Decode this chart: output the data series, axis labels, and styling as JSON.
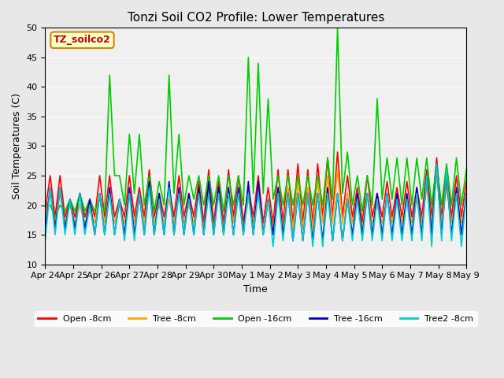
{
  "title": "Tonzi Soil CO2 Profile: Lower Temperatures",
  "xlabel": "Time",
  "ylabel": "Soil Temperatures (C)",
  "ylim": [
    10,
    50
  ],
  "yticks": [
    10,
    15,
    20,
    25,
    30,
    35,
    40,
    45,
    50
  ],
  "background_color": "#e8e8e8",
  "plot_bg_color": "#f0f0f0",
  "label_box_text": "TZ_soilco2",
  "label_box_bg": "#ffffcc",
  "label_box_border": "#cc8800",
  "label_box_text_color": "#cc0000",
  "series": {
    "open_8cm": {
      "color": "#ff0000",
      "label": "Open -8cm",
      "values": [
        19,
        25,
        18,
        25,
        18,
        21,
        18,
        22,
        18,
        21,
        18,
        25,
        18,
        25,
        18,
        21,
        18,
        25,
        18,
        23,
        18,
        26,
        18,
        22,
        18,
        23,
        18,
        25,
        18,
        22,
        18,
        24,
        17,
        26,
        17,
        24,
        17,
        26,
        18,
        25,
        17,
        23,
        18,
        25,
        17,
        23,
        17,
        26,
        17,
        26,
        17,
        27,
        17,
        26,
        17,
        27,
        18,
        28,
        18,
        29,
        18,
        25,
        18,
        23,
        17,
        25,
        18,
        22,
        18,
        24,
        18,
        23,
        18,
        24,
        18,
        23,
        18,
        26,
        18,
        28,
        18,
        26,
        18,
        25,
        18,
        24
      ]
    },
    "tree_8cm": {
      "color": "#ffa500",
      "label": "Tree -8cm",
      "values": [
        18,
        22,
        17,
        22,
        17,
        20,
        17,
        20,
        17,
        19,
        17,
        22,
        17,
        22,
        17,
        20,
        17,
        22,
        17,
        21,
        17,
        23,
        17,
        20,
        17,
        21,
        17,
        22,
        17,
        20,
        17,
        22,
        16,
        23,
        16,
        22,
        16,
        23,
        17,
        22,
        16,
        21,
        17,
        22,
        16,
        21,
        16,
        23,
        16,
        23,
        16,
        24,
        16,
        23,
        16,
        24,
        17,
        25,
        17,
        26,
        17,
        22,
        17,
        21,
        16,
        22,
        17,
        20,
        17,
        21,
        17,
        21,
        17,
        21,
        17,
        21,
        17,
        23,
        17,
        25,
        17,
        23,
        17,
        22,
        17,
        21
      ]
    },
    "open_16cm": {
      "color": "#00cc00",
      "label": "Open -16cm",
      "values": [
        20,
        20,
        18,
        20,
        19,
        21,
        19,
        22,
        19,
        21,
        19,
        21,
        19,
        42,
        25,
        25,
        20,
        32,
        22,
        32,
        20,
        25,
        19,
        24,
        20,
        42,
        22,
        32,
        20,
        25,
        21,
        25,
        20,
        25,
        20,
        25,
        19,
        25,
        20,
        25,
        20,
        45,
        22,
        44,
        22,
        38,
        21,
        25,
        20,
        25,
        20,
        25,
        20,
        25,
        20,
        25,
        20,
        28,
        21,
        50,
        22,
        29,
        20,
        25,
        19,
        25,
        20,
        38,
        21,
        28,
        21,
        28,
        20,
        28,
        20,
        28,
        21,
        28,
        20,
        27,
        20,
        27,
        20,
        28,
        20,
        26
      ]
    },
    "tree_16cm": {
      "color": "#0000cc",
      "label": "Tree -16cm",
      "values": [
        16,
        23,
        16,
        23,
        16,
        21,
        16,
        22,
        16,
        21,
        15,
        22,
        15,
        23,
        15,
        21,
        15,
        23,
        15,
        22,
        15,
        24,
        15,
        22,
        15,
        24,
        15,
        23,
        15,
        22,
        15,
        23,
        15,
        24,
        15,
        23,
        15,
        23,
        15,
        23,
        15,
        24,
        15,
        24,
        15,
        21,
        15,
        23,
        15,
        22,
        14,
        22,
        14,
        22,
        14,
        22,
        14,
        23,
        14,
        22,
        14,
        21,
        15,
        22,
        15,
        22,
        15,
        22,
        15,
        22,
        15,
        22,
        15,
        22,
        15,
        23,
        15,
        25,
        15,
        27,
        15,
        25,
        15,
        23,
        15,
        22
      ]
    },
    "tree2_8cm": {
      "color": "#00cccc",
      "label": "Tree2 -8cm",
      "values": [
        14,
        23,
        15,
        23,
        15,
        21,
        15,
        22,
        15,
        20,
        15,
        22,
        15,
        22,
        15,
        21,
        14,
        22,
        14,
        22,
        15,
        23,
        15,
        21,
        15,
        23,
        15,
        22,
        15,
        21,
        15,
        22,
        15,
        22,
        15,
        22,
        15,
        22,
        15,
        22,
        15,
        22,
        15,
        22,
        15,
        21,
        13,
        22,
        14,
        22,
        14,
        22,
        14,
        22,
        13,
        22,
        13,
        22,
        14,
        22,
        14,
        21,
        14,
        21,
        14,
        22,
        14,
        21,
        14,
        22,
        14,
        21,
        14,
        21,
        14,
        22,
        14,
        25,
        13,
        27,
        14,
        26,
        14,
        22,
        13,
        22
      ]
    }
  },
  "xtick_labels": [
    "Apr 24",
    "Apr 25",
    "Apr 26",
    "Apr 27",
    "Apr 28",
    "Apr 29",
    "Apr 30",
    "May 1",
    "May 2",
    "May 3",
    "May 4",
    "May 5",
    "May 6",
    "May 7",
    "May 8",
    "May 9"
  ],
  "n_points": 86
}
